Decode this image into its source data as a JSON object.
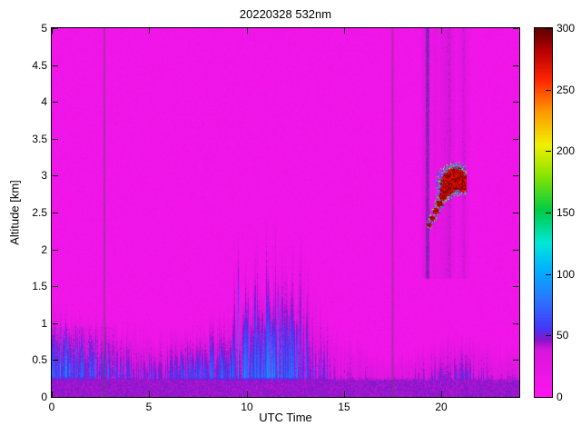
{
  "chart_data": {
    "type": "heatmap",
    "title": "20220328 532nm",
    "xlabel": "UTC Time",
    "ylabel": "Altitude [km]",
    "x_range": [
      0,
      24
    ],
    "y_range": [
      0,
      5
    ],
    "x_tick_values": [
      0,
      5,
      10,
      15,
      20
    ],
    "x_tick_labels": [
      "0",
      "5",
      "10",
      "15",
      "20"
    ],
    "y_tick_values": [
      0,
      0.5,
      1,
      1.5,
      2,
      2.5,
      3,
      3.5,
      4,
      4.5,
      5
    ],
    "y_tick_labels": [
      "0",
      "0.5",
      "1",
      "1.5",
      "2",
      "2.5",
      "3",
      "3.5",
      "4",
      "4.5",
      "5"
    ],
    "grid": false,
    "colorbar": {
      "min": 0,
      "max": 300,
      "tick_values": [
        0,
        50,
        100,
        150,
        200,
        250,
        300
      ],
      "tick_labels": [
        "0",
        "50",
        "100",
        "150",
        "200",
        "250",
        "300"
      ],
      "position": "right"
    },
    "colormap_stops": [
      [
        0,
        "#ff14f0"
      ],
      [
        38,
        "#d816dc"
      ],
      [
        46,
        "#8a14c8"
      ],
      [
        56,
        "#4438f8"
      ],
      [
        80,
        "#2878ff"
      ],
      [
        105,
        "#00b4ff"
      ],
      [
        125,
        "#00e8d8"
      ],
      [
        152,
        "#00cc44"
      ],
      [
        180,
        "#8ae400"
      ],
      [
        205,
        "#f0f000"
      ],
      [
        232,
        "#ff9800"
      ],
      [
        258,
        "#ff2400"
      ],
      [
        282,
        "#b40000"
      ],
      [
        300,
        "#5c0000"
      ]
    ],
    "field": {
      "background_value": 15,
      "noise_amplitude": 16,
      "surface_band": {
        "alt_top_km": 0.22,
        "value": 40
      },
      "boundary_layer": {
        "hours": [
          0,
          1,
          2,
          3,
          4,
          5,
          6,
          7,
          8,
          9,
          10,
          11,
          12,
          13,
          14,
          15,
          16,
          17,
          18,
          19,
          20,
          21,
          22,
          23,
          24
        ],
        "top_km": [
          1.15,
          1.05,
          0.95,
          0.9,
          0.85,
          0.8,
          0.78,
          0.8,
          0.88,
          1.0,
          1.15,
          1.3,
          1.4,
          1.25,
          0.95,
          0.75,
          0.62,
          0.55,
          0.55,
          0.6,
          0.7,
          0.75,
          0.7,
          0.62,
          0.58
        ],
        "intensity": [
          58,
          52,
          46,
          42,
          40,
          40,
          42,
          46,
          52,
          58,
          62,
          64,
          60,
          48,
          36,
          28,
          24,
          22,
          24,
          30,
          36,
          38,
          34,
          30,
          28
        ]
      },
      "gap_lines_utc": [
        2.7,
        17.5
      ],
      "attenuated_region": {
        "utc_range": [
          18.9,
          21.45
        ],
        "alt_min_km": 1.6
      },
      "cloud": {
        "utc_range": [
          19.3,
          21.15
        ],
        "alt_range": [
          2.25,
          3.1
        ],
        "core_value": 290,
        "edge_value_range": [
          50,
          220
        ],
        "path": [
          [
            19.38,
            2.33,
            0.035
          ],
          [
            19.55,
            2.42,
            0.04
          ],
          [
            19.72,
            2.52,
            0.045
          ],
          [
            19.9,
            2.62,
            0.05
          ],
          [
            20.08,
            2.72,
            0.06
          ],
          [
            20.28,
            2.82,
            0.1
          ],
          [
            20.5,
            2.92,
            0.14
          ],
          [
            20.72,
            2.96,
            0.15
          ],
          [
            20.95,
            2.92,
            0.12
          ],
          [
            21.1,
            2.84,
            0.07
          ]
        ]
      }
    }
  }
}
